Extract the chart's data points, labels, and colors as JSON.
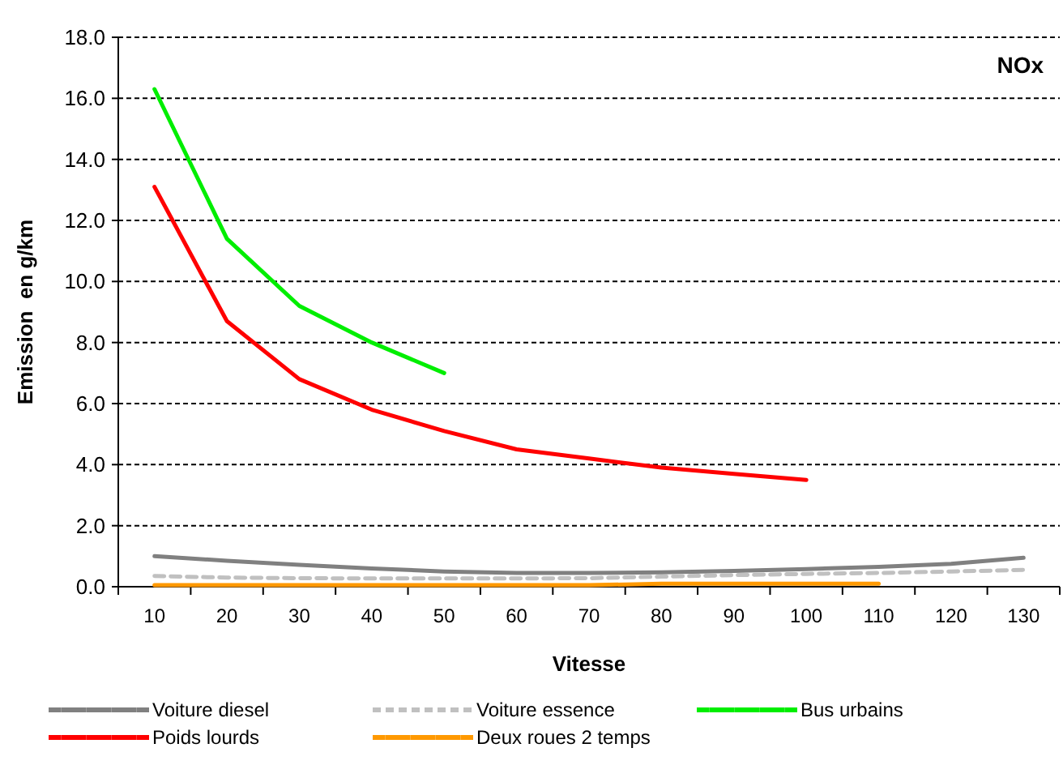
{
  "chart_data": {
    "type": "line",
    "title": "NOx",
    "xlabel": "Vitesse",
    "ylabel": "Emission  en g/km",
    "categories": [
      "10",
      "20",
      "30",
      "40",
      "50",
      "60",
      "70",
      "80",
      "90",
      "100",
      "110",
      "120",
      "130"
    ],
    "ylim": [
      0,
      18
    ],
    "yticks": [
      {
        "value": 0,
        "label": "0.0"
      },
      {
        "value": 2,
        "label": "2.0"
      },
      {
        "value": 4,
        "label": "4.0"
      },
      {
        "value": 6,
        "label": "6.0"
      },
      {
        "value": 8,
        "label": "8.0"
      },
      {
        "value": 10,
        "label": "10.0"
      },
      {
        "value": 12,
        "label": "12.0"
      },
      {
        "value": 14,
        "label": "14.0"
      },
      {
        "value": 16,
        "label": "16.0"
      },
      {
        "value": 18,
        "label": "18.0"
      }
    ],
    "grid": "y",
    "legend": "bottom",
    "marker": "none",
    "series": [
      {
        "name": "Voiture diesel",
        "color": "#808080",
        "values": [
          1.0,
          0.85,
          0.72,
          0.6,
          0.5,
          0.45,
          0.45,
          0.47,
          0.52,
          0.58,
          0.65,
          0.75,
          0.95
        ]
      },
      {
        "name": "Voiture essence",
        "color": "#c0c0c0",
        "line_style": "dashed",
        "values": [
          0.35,
          0.3,
          0.28,
          0.27,
          0.27,
          0.27,
          0.28,
          0.33,
          0.38,
          0.42,
          0.45,
          0.5,
          0.55
        ]
      },
      {
        "name": "Bus urbains",
        "color": "#00ee00",
        "values": [
          16.3,
          11.4,
          9.2,
          8.0,
          7.0,
          null,
          null,
          null,
          null,
          null,
          null,
          null,
          null
        ]
      },
      {
        "name": "Poids lourds",
        "color": "#ff0000",
        "values": [
          13.1,
          8.7,
          6.8,
          5.8,
          5.1,
          4.5,
          4.2,
          3.9,
          3.7,
          3.5,
          null,
          null,
          null
        ]
      },
      {
        "name": "Deux roues 2 temps",
        "color": "#ff9900",
        "values": [
          0.05,
          0.05,
          0.05,
          0.05,
          0.05,
          0.05,
          0.05,
          0.1,
          0.1,
          0.1,
          0.1,
          null,
          null
        ]
      }
    ]
  }
}
